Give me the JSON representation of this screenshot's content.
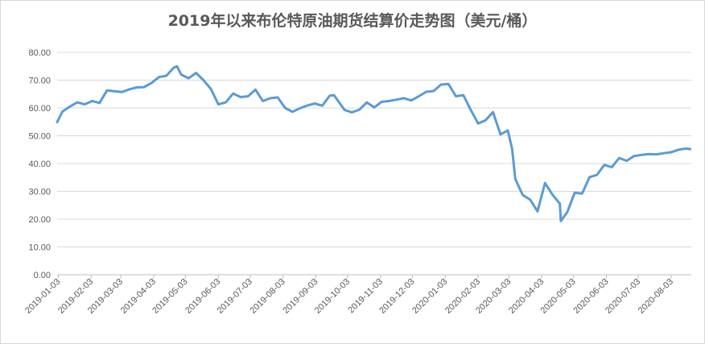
{
  "chart_data": {
    "type": "line",
    "title": "2019年以来布伦特原油期货结算价走势图（美元/桶）",
    "xlabel": "",
    "ylabel": "",
    "ylim": [
      0,
      80
    ],
    "yticks": [
      "0.00",
      "10.00",
      "20.00",
      "30.00",
      "40.00",
      "50.00",
      "60.00",
      "70.00",
      "80.00"
    ],
    "xticks": [
      "2019-01-03",
      "2019-02-03",
      "2019-03-03",
      "2019-04-03",
      "2019-05-03",
      "2019-06-03",
      "2019-07-03",
      "2019-08-03",
      "2019-09-03",
      "2019-10-03",
      "2019-11-03",
      "2019-12-03",
      "2020-01-03",
      "2020-02-03",
      "2020-03-03",
      "2020-04-03",
      "2020-05-03",
      "2020-06-03",
      "2020-07-03",
      "2020-08-03"
    ],
    "grid": true,
    "legend": "none",
    "color": "#5b9bd5",
    "series": [
      {
        "x": [
          "2019-01-02",
          "2019-01-07",
          "2019-01-14",
          "2019-01-21",
          "2019-01-28",
          "2019-02-04",
          "2019-02-11",
          "2019-02-18",
          "2019-02-25",
          "2019-03-04",
          "2019-03-11",
          "2019-03-18",
          "2019-03-25",
          "2019-04-01",
          "2019-04-08",
          "2019-04-15",
          "2019-04-22",
          "2019-04-25",
          "2019-04-29",
          "2019-05-06",
          "2019-05-13",
          "2019-05-20",
          "2019-05-27",
          "2019-06-03",
          "2019-06-10",
          "2019-06-17",
          "2019-06-24",
          "2019-07-01",
          "2019-07-08",
          "2019-07-15",
          "2019-07-22",
          "2019-07-29",
          "2019-08-05",
          "2019-08-12",
          "2019-08-19",
          "2019-08-26",
          "2019-09-02",
          "2019-09-09",
          "2019-09-16",
          "2019-09-20",
          "2019-09-30",
          "2019-10-07",
          "2019-10-14",
          "2019-10-21",
          "2019-10-28",
          "2019-11-04",
          "2019-11-11",
          "2019-11-18",
          "2019-11-25",
          "2019-12-02",
          "2019-12-09",
          "2019-12-16",
          "2019-12-23",
          "2019-12-30",
          "2020-01-06",
          "2020-01-13",
          "2020-01-20",
          "2020-01-27",
          "2020-02-03",
          "2020-02-10",
          "2020-02-17",
          "2020-02-24",
          "2020-03-02",
          "2020-03-06",
          "2020-03-09",
          "2020-03-16",
          "2020-03-23",
          "2020-03-30",
          "2020-04-06",
          "2020-04-13",
          "2020-04-20",
          "2020-04-21",
          "2020-04-27",
          "2020-05-04",
          "2020-05-11",
          "2020-05-18",
          "2020-05-25",
          "2020-06-01",
          "2020-06-08",
          "2020-06-15",
          "2020-06-22",
          "2020-06-29",
          "2020-07-06",
          "2020-07-13",
          "2020-07-20",
          "2020-07-27",
          "2020-08-03",
          "2020-08-10",
          "2020-08-17",
          "2020-08-21"
        ],
        "y": [
          54.9,
          58.7,
          60.5,
          62.0,
          61.3,
          62.5,
          61.8,
          66.3,
          66.0,
          65.7,
          66.7,
          67.4,
          67.5,
          69.0,
          71.1,
          71.6,
          74.5,
          75.0,
          72.0,
          70.7,
          72.6,
          70.0,
          66.8,
          61.3,
          62.0,
          65.2,
          63.9,
          64.2,
          66.6,
          62.5,
          63.5,
          63.8,
          60.0,
          58.6,
          59.9,
          60.9,
          61.6,
          60.8,
          64.4,
          64.6,
          59.3,
          58.4,
          59.4,
          62.0,
          60.2,
          62.2,
          62.5,
          63.0,
          63.5,
          62.7,
          64.2,
          65.8,
          66.1,
          68.4,
          68.6,
          64.2,
          64.6,
          59.3,
          54.4,
          55.6,
          58.5,
          50.5,
          51.9,
          45.3,
          34.4,
          28.7,
          27.0,
          22.8,
          33.0,
          28.8,
          25.6,
          19.3,
          22.5,
          29.5,
          29.2,
          35.1,
          35.9,
          39.5,
          38.7,
          42.0,
          41.0,
          42.7,
          43.1,
          43.4,
          43.3,
          43.7,
          44.1,
          45.0,
          45.4,
          45.2
        ]
      }
    ]
  }
}
